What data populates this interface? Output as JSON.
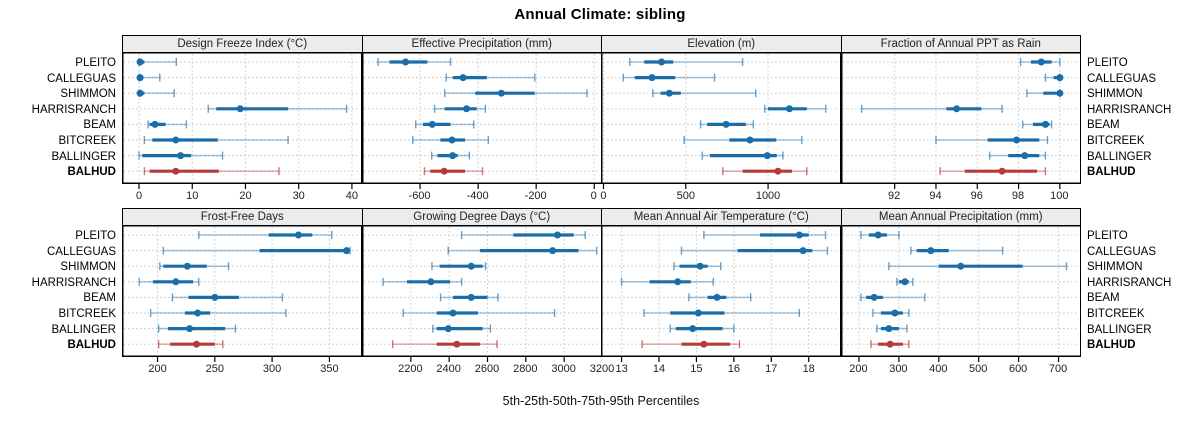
{
  "title": "Annual Climate: sibling",
  "footer": "5th-25th-50th-75th-95th Percentiles",
  "sites": [
    "PLEITO",
    "CALLEGUAS",
    "SHIMMON",
    "HARRISRANCH",
    "BEAM",
    "BITCREEK",
    "BALLINGER",
    "BALHUD"
  ],
  "highlight_site": "BALHUD",
  "percentiles_order": [
    5,
    25,
    50,
    75,
    95
  ],
  "colors": {
    "series_blue": "#1b6daa",
    "series_blue_light": "rgba(27,109,170,0.38)",
    "series_blue_cap": "rgba(27,109,170,0.65)",
    "highlight_red": "#b53b3b",
    "highlight_red_light": "rgba(181,59,59,0.38)",
    "highlight_red_cap": "rgba(181,59,59,0.7)",
    "strip_bg": "#ececec",
    "panel_border": "#000000",
    "grid": "#c6c6c6",
    "text": "#000000"
  },
  "chart_data": [
    {
      "type": "dotplot-percentiles",
      "grid_row": 0,
      "grid_col": 0,
      "title": "Design Freeze Index (°C)",
      "xlim": [
        -3.2,
        41.8
      ],
      "ticks": [
        0,
        10,
        20,
        30,
        40
      ],
      "series": [
        {
          "site": "PLEITO",
          "percentiles": [
            0,
            0,
            0.2,
            1,
            7
          ]
        },
        {
          "site": "CALLEGUAS",
          "percentiles": [
            0,
            0,
            0.2,
            0.8,
            3.9
          ]
        },
        {
          "site": "SHIMMON",
          "percentiles": [
            0,
            0,
            0.2,
            1,
            6.6
          ]
        },
        {
          "site": "HARRISRANCH",
          "percentiles": [
            13,
            14.5,
            19,
            28,
            39
          ]
        },
        {
          "site": "BEAM",
          "percentiles": [
            1.7,
            2,
            3,
            5,
            8.9
          ]
        },
        {
          "site": "BITCREEK",
          "percentiles": [
            1,
            2.5,
            6.9,
            14.8,
            28
          ]
        },
        {
          "site": "BALLINGER",
          "percentiles": [
            0,
            0.6,
            7.8,
            9.8,
            15.7
          ]
        },
        {
          "site": "BALHUD",
          "percentiles": [
            1,
            2,
            6.9,
            15,
            26.3
          ]
        }
      ]
    },
    {
      "type": "dotplot-percentiles",
      "grid_row": 0,
      "grid_col": 1,
      "title": "Effective Precipitation (mm)",
      "xlim": [
        -800,
        25
      ],
      "ticks": [
        -600,
        -400,
        -200,
        0
      ],
      "series": [
        {
          "site": "PLEITO",
          "percentiles": [
            -745,
            -705,
            -650,
            -575,
            -495
          ]
        },
        {
          "site": "CALLEGUAS",
          "percentiles": [
            -510,
            -487,
            -452,
            -370,
            -205
          ]
        },
        {
          "site": "SHIMMON",
          "percentiles": [
            -515,
            -410,
            -320,
            -205,
            -25
          ]
        },
        {
          "site": "HARRISRANCH",
          "percentiles": [
            -550,
            -515,
            -440,
            -405,
            -375
          ]
        },
        {
          "site": "BEAM",
          "percentiles": [
            -615,
            -590,
            -558,
            -495,
            -415
          ]
        },
        {
          "site": "BITCREEK",
          "percentiles": [
            -625,
            -530,
            -490,
            -445,
            -365
          ]
        },
        {
          "site": "BALLINGER",
          "percentiles": [
            -560,
            -540,
            -488,
            -470,
            -430
          ]
        },
        {
          "site": "BALHUD",
          "percentiles": [
            -585,
            -565,
            -517,
            -445,
            -385
          ]
        }
      ]
    },
    {
      "type": "dotplot-percentiles",
      "grid_row": 0,
      "grid_col": 2,
      "title": "Elevation (m)",
      "xlim": [
        -15,
        1440
      ],
      "ticks": [
        0,
        500,
        1000
      ],
      "series": [
        {
          "site": "PLEITO",
          "percentiles": [
            160,
            248,
            353,
            424,
            845
          ]
        },
        {
          "site": "CALLEGUAS",
          "percentiles": [
            120,
            190,
            295,
            435,
            675
          ]
        },
        {
          "site": "SHIMMON",
          "percentiles": [
            300,
            347,
            400,
            470,
            925
          ]
        },
        {
          "site": "HARRISRANCH",
          "percentiles": [
            980,
            1000,
            1130,
            1235,
            1350
          ]
        },
        {
          "site": "BEAM",
          "percentiles": [
            590,
            630,
            745,
            865,
            910
          ]
        },
        {
          "site": "BITCREEK",
          "percentiles": [
            490,
            765,
            890,
            1050,
            1205
          ]
        },
        {
          "site": "BALLINGER",
          "percentiles": [
            600,
            647,
            995,
            1053,
            1090
          ]
        },
        {
          "site": "BALHUD",
          "percentiles": [
            725,
            845,
            1060,
            1145,
            1235
          ]
        }
      ]
    },
    {
      "type": "dotplot-percentiles",
      "grid_row": 0,
      "grid_col": 3,
      "title": "Fraction of Annual PPT as Rain",
      "xlim": [
        89.4,
        101
      ],
      "ticks": [
        92,
        94,
        96,
        98,
        100
      ],
      "series": [
        {
          "site": "PLEITO",
          "percentiles": [
            98.1,
            98.6,
            99.1,
            99.6,
            100
          ]
        },
        {
          "site": "CALLEGUAS",
          "percentiles": [
            99.3,
            99.7,
            100,
            100,
            100
          ]
        },
        {
          "site": "SHIMMON",
          "percentiles": [
            98.4,
            99.2,
            100,
            100,
            100
          ]
        },
        {
          "site": "HARRISRANCH",
          "percentiles": [
            90.4,
            94.5,
            95,
            96.2,
            97.2
          ]
        },
        {
          "site": "BEAM",
          "percentiles": [
            98.2,
            98.7,
            99.3,
            99.5,
            99.6
          ]
        },
        {
          "site": "BITCREEK",
          "percentiles": [
            94,
            96.5,
            97.9,
            99,
            99.4
          ]
        },
        {
          "site": "BALLINGER",
          "percentiles": [
            96.6,
            97.5,
            98.3,
            99,
            99.3
          ]
        },
        {
          "site": "BALHUD",
          "percentiles": [
            94.2,
            95.4,
            97.2,
            98.9,
            99.3
          ]
        }
      ]
    },
    {
      "type": "dotplot-percentiles",
      "grid_row": 1,
      "grid_col": 0,
      "title": "Frost-Free Days",
      "xlim": [
        169,
        378
      ],
      "ticks": [
        200,
        250,
        300,
        350
      ],
      "series": [
        {
          "site": "PLEITO",
          "percentiles": [
            236,
            297,
            323,
            335,
            352
          ]
        },
        {
          "site": "CALLEGUAS",
          "percentiles": [
            205,
            289,
            365,
            366,
            368
          ]
        },
        {
          "site": "SHIMMON",
          "percentiles": [
            202,
            205,
            226,
            243,
            262
          ]
        },
        {
          "site": "HARRISRANCH",
          "percentiles": [
            184,
            196,
            216,
            231,
            236
          ]
        },
        {
          "site": "BEAM",
          "percentiles": [
            213,
            227,
            250,
            271,
            309
          ]
        },
        {
          "site": "BITCREEK",
          "percentiles": [
            194,
            224,
            235,
            246,
            312
          ]
        },
        {
          "site": "BALLINGER",
          "percentiles": [
            201,
            209,
            228,
            259,
            268
          ]
        },
        {
          "site": "BALHUD",
          "percentiles": [
            201,
            211,
            234,
            250,
            257
          ]
        }
      ]
    },
    {
      "type": "dotplot-percentiles",
      "grid_row": 1,
      "grid_col": 1,
      "title": "Growing Degree Days (°C)",
      "xlim": [
        1945,
        3195
      ],
      "ticks": [
        2200,
        2400,
        2600,
        2800,
        3000,
        3200
      ],
      "series": [
        {
          "site": "PLEITO",
          "percentiles": [
            2465,
            2735,
            2965,
            3050,
            3110
          ]
        },
        {
          "site": "CALLEGUAS",
          "percentiles": [
            2395,
            2560,
            2940,
            3075,
            3170
          ]
        },
        {
          "site": "SHIMMON",
          "percentiles": [
            2310,
            2350,
            2515,
            2575,
            2590
          ]
        },
        {
          "site": "HARRISRANCH",
          "percentiles": [
            2055,
            2180,
            2305,
            2405,
            2465
          ]
        },
        {
          "site": "BEAM",
          "percentiles": [
            2355,
            2420,
            2515,
            2600,
            2655
          ]
        },
        {
          "site": "BITCREEK",
          "percentiles": [
            2160,
            2335,
            2420,
            2550,
            2950
          ]
        },
        {
          "site": "BALLINGER",
          "percentiles": [
            2315,
            2335,
            2395,
            2575,
            2615
          ]
        },
        {
          "site": "BALHUD",
          "percentiles": [
            2105,
            2335,
            2440,
            2560,
            2650
          ]
        }
      ]
    },
    {
      "type": "dotplot-percentiles",
      "grid_row": 1,
      "grid_col": 2,
      "title": "Mean Annual Air Temperature (°C)",
      "xlim": [
        12.45,
        18.85
      ],
      "ticks": [
        13,
        14,
        15,
        16,
        17,
        18
      ],
      "series": [
        {
          "site": "PLEITO",
          "percentiles": [
            15.2,
            16.7,
            17.75,
            18.0,
            18.45
          ]
        },
        {
          "site": "CALLEGUAS",
          "percentiles": [
            14.6,
            16.1,
            17.85,
            18.1,
            18.5
          ]
        },
        {
          "site": "SHIMMON",
          "percentiles": [
            14.4,
            14.55,
            15.1,
            15.3,
            15.65
          ]
        },
        {
          "site": "HARRISRANCH",
          "percentiles": [
            13.0,
            13.75,
            14.5,
            14.85,
            15.45
          ]
        },
        {
          "site": "BEAM",
          "percentiles": [
            14.8,
            15.3,
            15.55,
            15.8,
            16.45
          ]
        },
        {
          "site": "BITCREEK",
          "percentiles": [
            13.6,
            14.3,
            15.05,
            15.75,
            17.75
          ]
        },
        {
          "site": "BALLINGER",
          "percentiles": [
            14.3,
            14.45,
            14.9,
            15.7,
            16.0
          ]
        },
        {
          "site": "BALHUD",
          "percentiles": [
            13.55,
            14.6,
            15.2,
            15.9,
            16.15
          ]
        }
      ]
    },
    {
      "type": "dotplot-percentiles",
      "grid_row": 1,
      "grid_col": 3,
      "title": "Mean Annual Precipitation (mm)",
      "xlim": [
        155,
        755
      ],
      "ticks": [
        200,
        300,
        400,
        500,
        600,
        700
      ],
      "series": [
        {
          "site": "PLEITO",
          "percentiles": [
            205,
            225,
            248,
            270,
            300
          ]
        },
        {
          "site": "CALLEGUAS",
          "percentiles": [
            330,
            345,
            380,
            425,
            560
          ]
        },
        {
          "site": "SHIMMON",
          "percentiles": [
            275,
            400,
            455,
            610,
            720
          ]
        },
        {
          "site": "HARRISRANCH",
          "percentiles": [
            295,
            300,
            315,
            325,
            335
          ]
        },
        {
          "site": "BEAM",
          "percentiles": [
            205,
            218,
            238,
            260,
            365
          ]
        },
        {
          "site": "BITCREEK",
          "percentiles": [
            235,
            255,
            290,
            310,
            325
          ]
        },
        {
          "site": "BALLINGER",
          "percentiles": [
            245,
            255,
            275,
            300,
            320
          ]
        },
        {
          "site": "BALHUD",
          "percentiles": [
            230,
            248,
            278,
            310,
            325
          ]
        }
      ]
    }
  ]
}
